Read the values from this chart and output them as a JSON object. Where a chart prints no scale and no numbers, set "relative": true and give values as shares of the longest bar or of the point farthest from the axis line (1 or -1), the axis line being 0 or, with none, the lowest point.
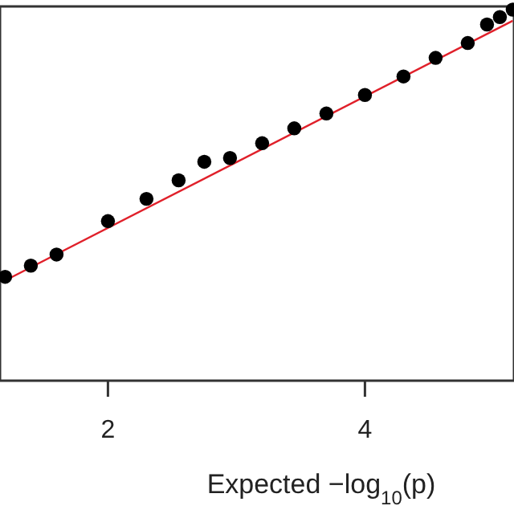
{
  "chart_data": {
    "type": "scatter",
    "xlabel": "Expected −log$_{10}$(p)",
    "relative": true,
    "xlim": [
      1.16,
      5.16
    ],
    "xticks": [
      2,
      4
    ],
    "grid": false,
    "series": [
      {
        "type": "line",
        "color": "#e0202a",
        "line_style": "solid",
        "x": [
          1.2,
          5.15
        ],
        "values": [
          0.27,
          0.97
        ]
      },
      {
        "type": "scatter",
        "marker": "circle",
        "color": "#000000",
        "x": [
          1.2,
          1.4,
          1.6,
          2.0,
          2.3,
          2.55,
          2.75,
          2.95,
          3.2,
          3.45,
          3.7,
          4.0,
          4.3,
          4.55,
          4.8,
          4.95,
          5.05,
          5.15
        ],
        "values": [
          0.28,
          0.31,
          0.34,
          0.43,
          0.49,
          0.54,
          0.59,
          0.6,
          0.64,
          0.68,
          0.72,
          0.77,
          0.82,
          0.87,
          0.91,
          0.96,
          0.98,
          1.0
        ]
      }
    ]
  }
}
